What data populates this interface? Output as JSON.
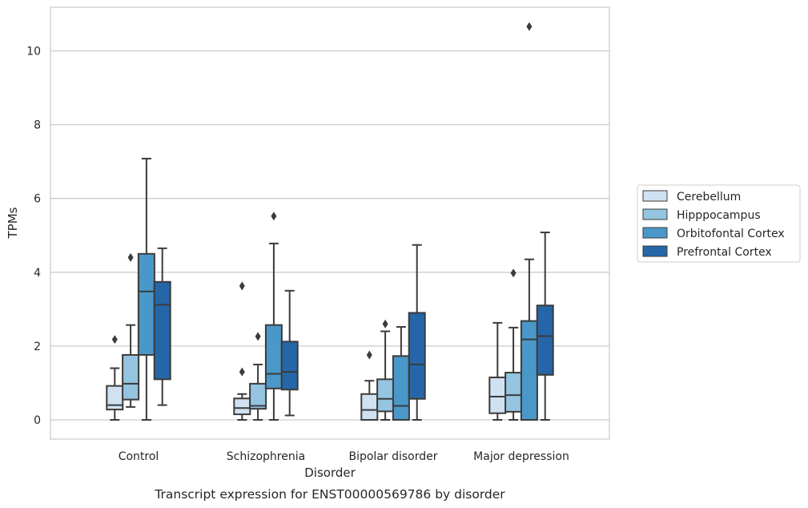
{
  "chart_data": {
    "type": "box",
    "caption": "Transcript expression for ENST00000569786 by disorder",
    "xlabel": "Disorder",
    "ylabel": "TPMs",
    "ylim": [
      -0.5,
      11.2
    ],
    "yticks": [
      0,
      2,
      4,
      6,
      8,
      10
    ],
    "grid": "horizontal",
    "legend_position": "right",
    "categories": [
      "Control",
      "Schizophrenia",
      "Bipolar disorder",
      "Major depression"
    ],
    "series": [
      {
        "name": "Cerebellum",
        "color": "#d0e1f2",
        "boxes": [
          {
            "whisker_low": 0.0,
            "q1": 0.28,
            "median": 0.4,
            "q3": 0.92,
            "whisker_high": 1.4,
            "outliers": [
              2.18
            ]
          },
          {
            "whisker_low": 0.0,
            "q1": 0.15,
            "median": 0.32,
            "q3": 0.58,
            "whisker_high": 0.7,
            "outliers": [
              1.3,
              3.63
            ]
          },
          {
            "whisker_low": 0.0,
            "q1": 0.0,
            "median": 0.27,
            "q3": 0.7,
            "whisker_high": 1.06,
            "outliers": [
              1.76
            ]
          },
          {
            "whisker_low": 0.0,
            "q1": 0.18,
            "median": 0.63,
            "q3": 1.15,
            "whisker_high": 2.63,
            "outliers": []
          }
        ]
      },
      {
        "name": "Hipppocampus",
        "color": "#94c4df",
        "boxes": [
          {
            "whisker_low": 0.35,
            "q1": 0.55,
            "median": 0.98,
            "q3": 1.76,
            "whisker_high": 2.57,
            "outliers": [
              4.4
            ]
          },
          {
            "whisker_low": 0.0,
            "q1": 0.3,
            "median": 0.38,
            "q3": 0.98,
            "whisker_high": 1.5,
            "outliers": [
              2.26
            ]
          },
          {
            "whisker_low": 0.0,
            "q1": 0.23,
            "median": 0.57,
            "q3": 1.1,
            "whisker_high": 2.4,
            "outliers": [
              2.6
            ]
          },
          {
            "whisker_low": 0.0,
            "q1": 0.22,
            "median": 0.67,
            "q3": 1.28,
            "whisker_high": 2.5,
            "outliers": [
              3.98
            ]
          }
        ]
      },
      {
        "name": "Orbitofontal Cortex",
        "color": "#4a98c9",
        "boxes": [
          {
            "whisker_low": 0.0,
            "q1": 1.76,
            "median": 3.48,
            "q3": 4.5,
            "whisker_high": 7.08,
            "outliers": []
          },
          {
            "whisker_low": 0.0,
            "q1": 0.85,
            "median": 1.25,
            "q3": 2.57,
            "whisker_high": 4.78,
            "outliers": [
              5.52
            ]
          },
          {
            "whisker_low": 0.0,
            "q1": 0.0,
            "median": 0.38,
            "q3": 1.73,
            "whisker_high": 2.52,
            "outliers": []
          },
          {
            "whisker_low": 0.0,
            "q1": 0.0,
            "median": 2.18,
            "q3": 2.68,
            "whisker_high": 4.35,
            "outliers": [
              10.66
            ]
          }
        ]
      },
      {
        "name": "Prefrontal Cortex",
        "color": "#2566a8",
        "boxes": [
          {
            "whisker_low": 0.4,
            "q1": 1.1,
            "median": 3.12,
            "q3": 3.74,
            "whisker_high": 4.65,
            "outliers": []
          },
          {
            "whisker_low": 0.12,
            "q1": 0.82,
            "median": 1.3,
            "q3": 2.12,
            "whisker_high": 3.5,
            "outliers": []
          },
          {
            "whisker_low": 0.0,
            "q1": 0.57,
            "median": 1.5,
            "q3": 2.9,
            "whisker_high": 4.74,
            "outliers": []
          },
          {
            "whisker_low": 0.0,
            "q1": 1.22,
            "median": 2.27,
            "q3": 3.1,
            "whisker_high": 5.08,
            "outliers": []
          }
        ]
      }
    ]
  }
}
